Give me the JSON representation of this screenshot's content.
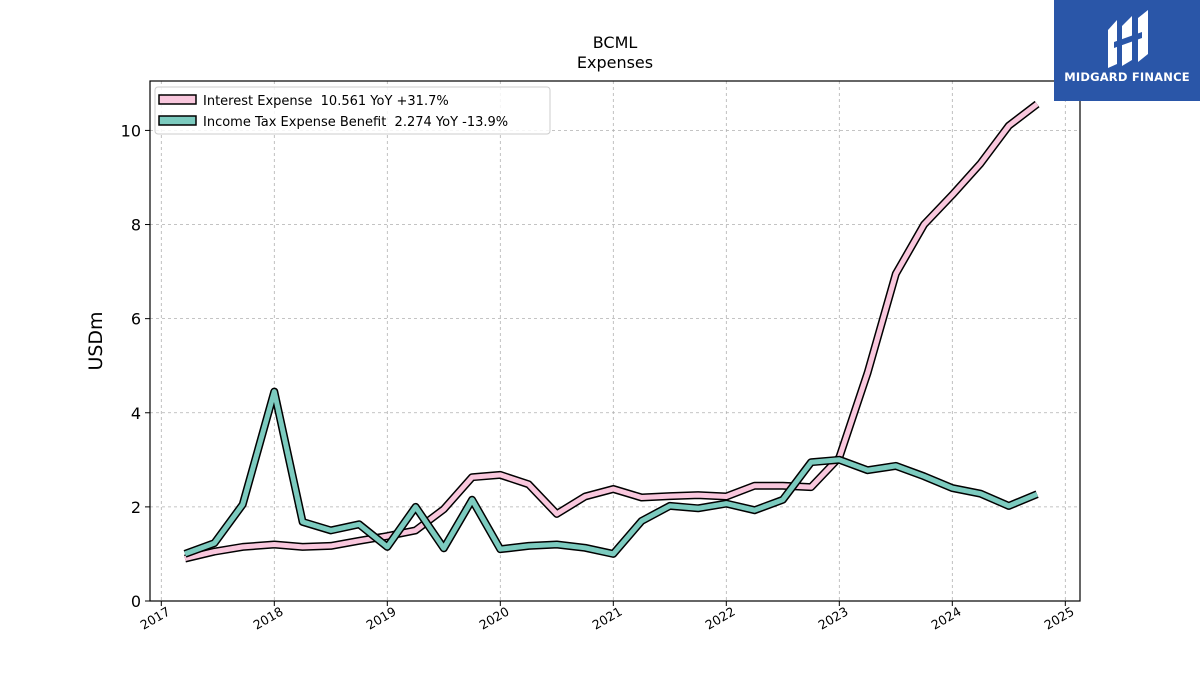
{
  "chart_data": {
    "type": "line",
    "title": "BCML",
    "subtitle": "Expenses",
    "xlabel": "",
    "ylabel": "USDm",
    "xlim": [
      2016.9,
      2025.13
    ],
    "ylim": [
      0,
      11.05
    ],
    "xticks": [
      2017,
      2018,
      2019,
      2020,
      2021,
      2022,
      2023,
      2024,
      2025
    ],
    "yticks": [
      0,
      2,
      4,
      6,
      8,
      10
    ],
    "grid": true,
    "legend_position": "top-left",
    "series": [
      {
        "name": "Interest Expense  10.561 YoY +31.7%",
        "color": "#f9c7dd",
        "x": [
          2017.21,
          2017.47,
          2017.72,
          2018.0,
          2018.25,
          2018.5,
          2018.75,
          2019.0,
          2019.25,
          2019.5,
          2019.75,
          2020.0,
          2020.25,
          2020.5,
          2020.75,
          2021.0,
          2021.25,
          2021.5,
          2021.75,
          2022.0,
          2022.25,
          2022.5,
          2022.75,
          2023.0,
          2023.25,
          2023.5,
          2023.75,
          2024.0,
          2024.25,
          2024.5,
          2024.75
        ],
        "y": [
          0.9,
          1.05,
          1.15,
          1.2,
          1.15,
          1.17,
          1.28,
          1.38,
          1.5,
          1.95,
          2.63,
          2.68,
          2.48,
          1.85,
          2.22,
          2.38,
          2.2,
          2.23,
          2.25,
          2.22,
          2.45,
          2.45,
          2.42,
          3.05,
          4.85,
          6.95,
          8.0,
          8.63,
          9.3,
          10.1,
          10.56
        ]
      },
      {
        "name": "Income Tax Expense Benefit  2.274 YoY -13.9%",
        "color": "#7ccbbf",
        "x": [
          2017.21,
          2017.47,
          2017.72,
          2018.0,
          2018.25,
          2018.5,
          2018.75,
          2019.0,
          2019.25,
          2019.5,
          2019.75,
          2020.0,
          2020.25,
          2020.5,
          2020.75,
          2021.0,
          2021.25,
          2021.5,
          2021.75,
          2022.0,
          2022.25,
          2022.5,
          2022.75,
          2023.0,
          2023.25,
          2023.5,
          2023.75,
          2024.0,
          2024.25,
          2024.5,
          2024.75
        ],
        "y": [
          1.0,
          1.23,
          2.05,
          4.45,
          1.68,
          1.5,
          1.63,
          1.15,
          2.0,
          1.12,
          2.15,
          1.1,
          1.17,
          1.2,
          1.13,
          1.0,
          1.7,
          2.02,
          1.97,
          2.07,
          1.93,
          2.15,
          2.95,
          3.0,
          2.78,
          2.87,
          2.65,
          2.4,
          2.28,
          2.02,
          2.27
        ]
      }
    ]
  },
  "logo": {
    "text": "MIDGARD FINANCE"
  }
}
